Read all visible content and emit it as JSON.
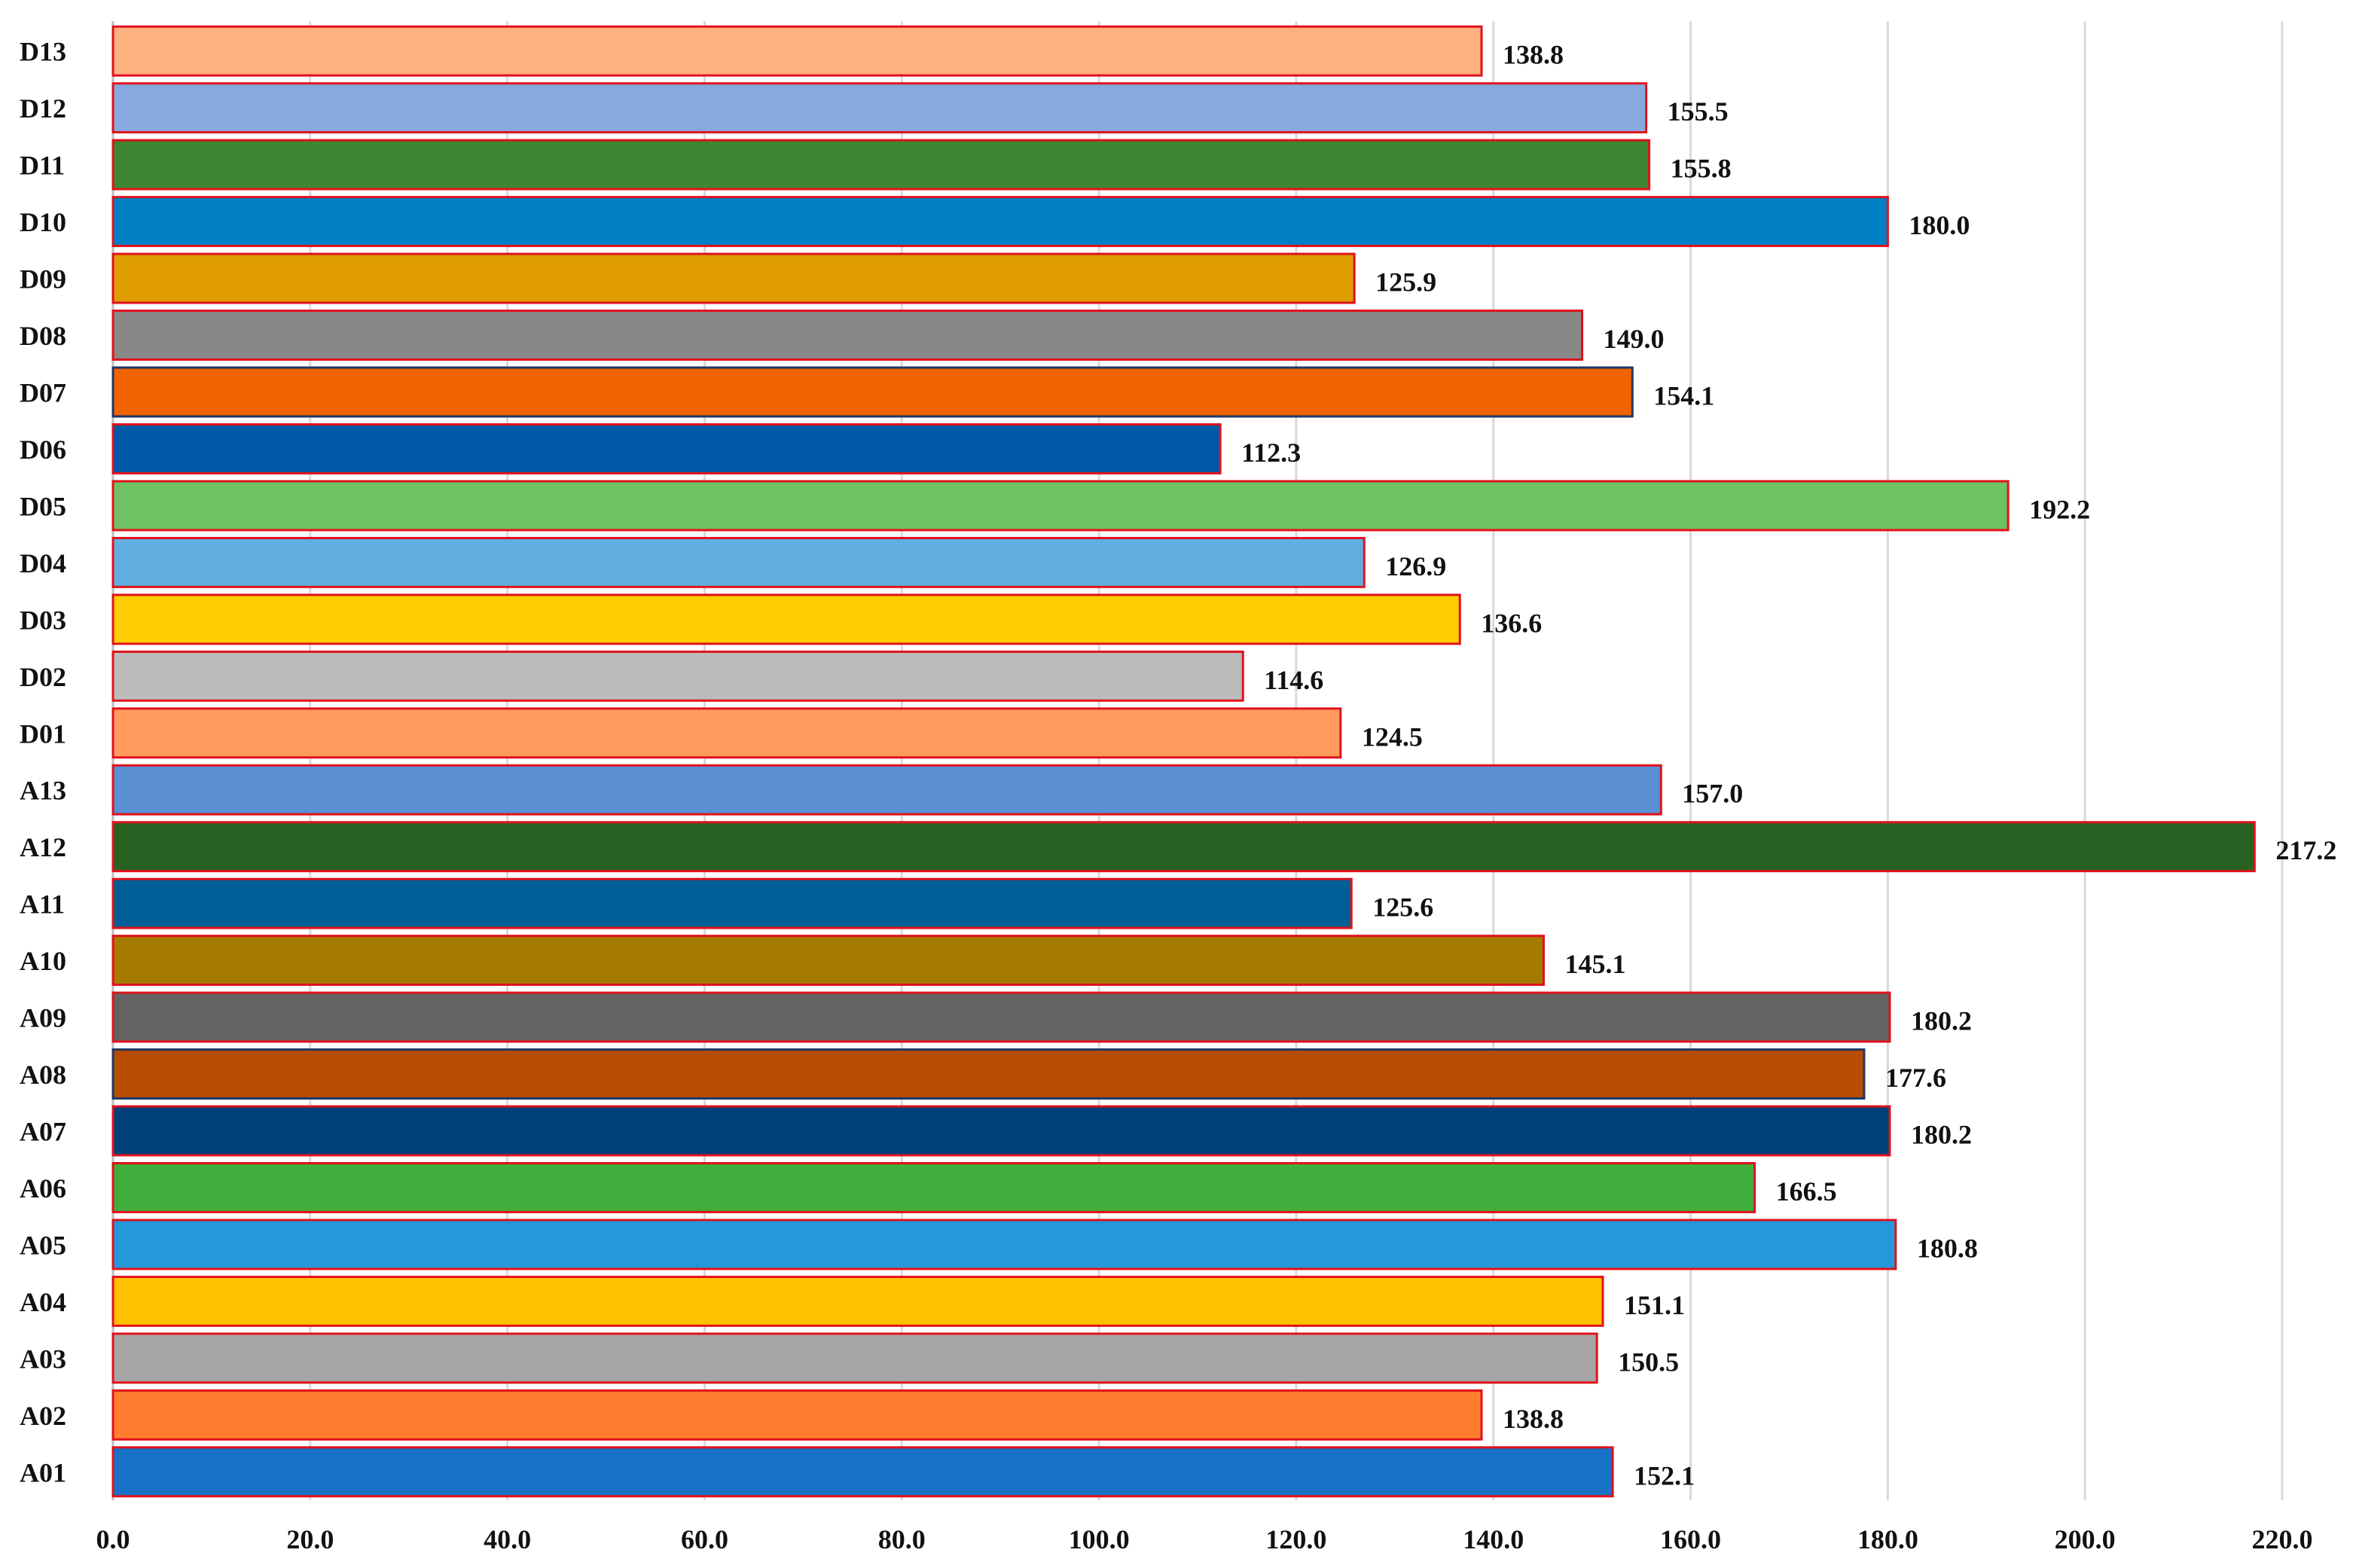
{
  "chart_data": {
    "type": "bar",
    "orientation": "horizontal",
    "categories": [
      "A01",
      "A02",
      "A03",
      "A04",
      "A05",
      "A06",
      "A07",
      "A08",
      "A09",
      "A10",
      "A11",
      "A12",
      "A13",
      "D01",
      "D02",
      "D03",
      "D04",
      "D05",
      "D06",
      "D07",
      "D08",
      "D09",
      "D10",
      "D11",
      "D12",
      "D13"
    ],
    "values": [
      152.1,
      138.8,
      150.5,
      151.1,
      180.8,
      166.5,
      180.2,
      177.6,
      180.2,
      145.1,
      125.6,
      217.2,
      157.0,
      124.5,
      114.6,
      136.6,
      126.9,
      192.2,
      112.3,
      154.1,
      149.0,
      125.9,
      180.0,
      155.8,
      155.5,
      138.8
    ],
    "value_labels": [
      "152.1",
      "138.8",
      "150.5",
      "151.1",
      "180.8",
      "166.5",
      "180.2",
      "177.6",
      "180.2",
      "145.1",
      "125.6",
      "217.2",
      "157.0",
      "124.5",
      "114.6",
      "136.6",
      "126.9",
      "192.2",
      "112.3",
      "154.1",
      "149.0",
      "125.9",
      "180.0",
      "155.8",
      "155.5",
      "138.8"
    ],
    "colors": [
      "#1872c7",
      "#ff7d2e",
      "#a6a6a6",
      "#ffc000",
      "#2399d9",
      "#42ad3c",
      "#004079",
      "#b84c00",
      "#636363",
      "#a57a00",
      "#005f96",
      "#286121",
      "#5b8fd4",
      "#ff9a5c",
      "#bcbcbc",
      "#ffcd03",
      "#61afe0",
      "#6fc263",
      "#0059a6",
      "#f06300",
      "#888888",
      "#de9c00",
      "#007fc5",
      "#3e8632",
      "#86a9de",
      "#ffb080"
    ],
    "border_colors": [
      "#e0121c",
      "#e0121c",
      "#e0121c",
      "#e0121c",
      "#e0121c",
      "#e0121c",
      "#e0121c",
      "#1f3864",
      "#e0121c",
      "#e0121c",
      "#e0121c",
      "#e0121c",
      "#e0121c",
      "#e0121c",
      "#e0121c",
      "#e0121c",
      "#e0121c",
      "#e0121c",
      "#e0121c",
      "#1f3864",
      "#e0121c",
      "#e0121c",
      "#e0121c",
      "#e0121c",
      "#e0121c",
      "#e0121c"
    ],
    "xticks": [
      "0.0",
      "20.0",
      "40.0",
      "60.0",
      "80.0",
      "100.0",
      "120.0",
      "140.0",
      "160.0",
      "180.0",
      "200.0",
      "220.0"
    ],
    "xlim": [
      0,
      220
    ],
    "grid": "vertical",
    "title": "",
    "xlabel": "",
    "ylabel": ""
  }
}
